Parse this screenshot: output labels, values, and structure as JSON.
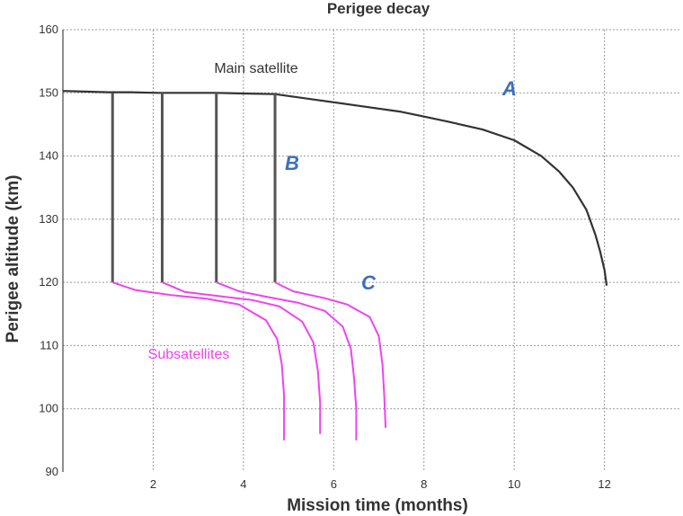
{
  "chart_data": {
    "type": "line",
    "title": "Perigee decay",
    "xlabel": "Mission time (months)",
    "ylabel": "Perigee altitude (km)",
    "xlim": [
      0,
      13.7
    ],
    "ylim": [
      90,
      160
    ],
    "xticks": [
      2,
      4,
      6,
      8,
      10,
      12
    ],
    "yticks": [
      90,
      100,
      110,
      120,
      130,
      140,
      150,
      160
    ],
    "grid": true,
    "series": [
      {
        "name": "Main satellite",
        "color": "#333333",
        "x": [
          0,
          0.5,
          1.0,
          1.5,
          2.1,
          2.8,
          3.4,
          4.0,
          4.7,
          5.5,
          6.5,
          7.5,
          8.5,
          9.3,
          10.0,
          10.6,
          11.0,
          11.3,
          11.6,
          11.8,
          11.9,
          12.0,
          12.05
        ],
        "y": [
          150.3,
          150.2,
          150.1,
          150.1,
          150.0,
          150.0,
          150.0,
          149.9,
          149.8,
          149.0,
          148.0,
          147.0,
          145.5,
          144.2,
          142.5,
          140.0,
          137.5,
          135.0,
          131.5,
          127.5,
          125.0,
          122.0,
          119.5
        ]
      },
      {
        "name": "Separation drops",
        "color": "#555555",
        "drops_x": [
          1.1,
          2.2,
          3.4,
          4.7
        ],
        "from": 150,
        "to": 120
      },
      {
        "name": "Subsatellites",
        "color": "#ee44ee",
        "curves": [
          {
            "x": [
              1.1,
              1.6,
              2.4,
              3.2,
              3.9,
              4.5,
              4.75,
              4.85,
              4.9,
              4.9
            ],
            "y": [
              120,
              118.8,
              118.0,
              117.4,
              116.5,
              114.0,
              111.0,
              107.0,
              102.0,
              95.0
            ]
          },
          {
            "x": [
              2.2,
              2.7,
              3.5,
              4.2,
              4.8,
              5.3,
              5.55,
              5.65,
              5.7,
              5.7
            ],
            "y": [
              120,
              118.5,
              117.8,
              117.2,
              116.2,
              113.8,
              110.5,
              106.0,
              101.0,
              96.0
            ]
          },
          {
            "x": [
              3.4,
              3.9,
              4.6,
              5.2,
              5.8,
              6.2,
              6.38,
              6.45,
              6.5,
              6.5
            ],
            "y": [
              120,
              118.6,
              117.6,
              116.8,
              115.5,
              113.0,
              109.5,
              105.0,
              100.0,
              95.0
            ]
          },
          {
            "x": [
              4.7,
              5.1,
              5.8,
              6.3,
              6.8,
              7.0,
              7.08,
              7.12,
              7.15
            ],
            "y": [
              120,
              118.6,
              117.5,
              116.5,
              114.5,
              111.5,
              107.0,
              102.0,
              97.0
            ]
          }
        ]
      }
    ],
    "annotations": {
      "main_label": "Main satellite",
      "sub_label": "Subsatellites",
      "letter_a": "A",
      "letter_b": "B",
      "letter_c": "C"
    }
  }
}
